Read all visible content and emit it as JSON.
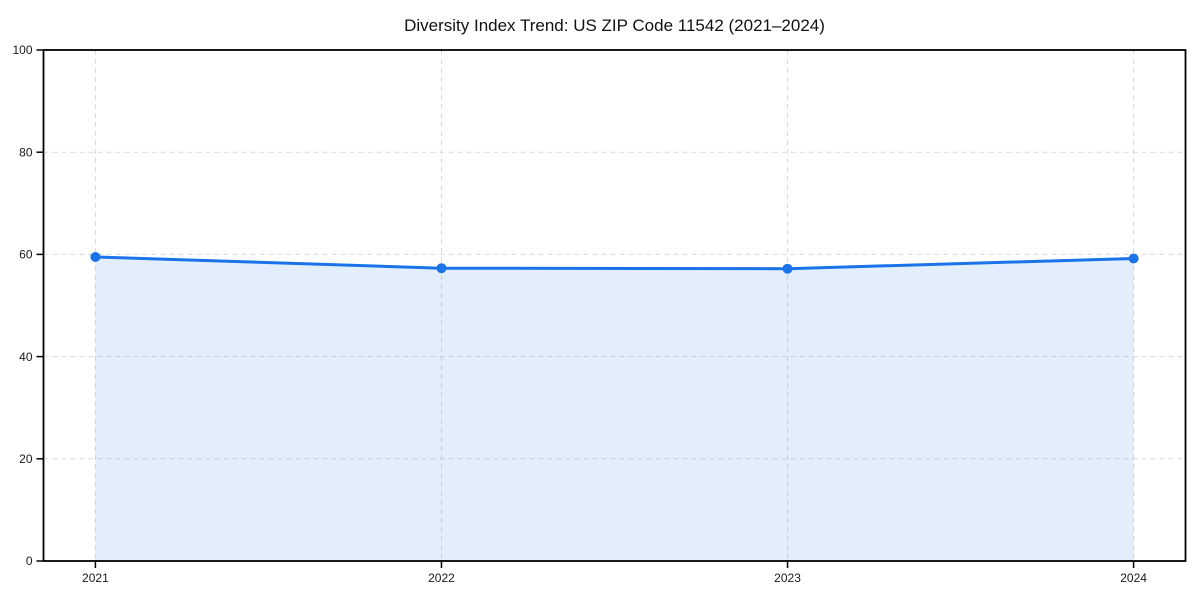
{
  "chart_data": {
    "type": "area",
    "title": "Diversity Index Trend: US ZIP Code 11542 (2021–2024)",
    "x": [
      2021,
      2022,
      2023,
      2024
    ],
    "series": [
      {
        "name": "Diversity Index",
        "values": [
          59.5,
          57.3,
          57.2,
          59.2
        ]
      }
    ],
    "xlabel": "",
    "ylabel": "",
    "ylim": [
      0,
      100
    ],
    "yticks": [
      0,
      20,
      40,
      60,
      80,
      100
    ],
    "ytick_labels": [
      "0",
      "20",
      "40",
      "60",
      "80",
      "100"
    ],
    "xticks": [
      2021,
      2022,
      2023,
      2024
    ],
    "xtick_labels": [
      "2021",
      "2022",
      "2023",
      "2024"
    ],
    "grid": "dashed",
    "legend_position": "none",
    "colors": {
      "line": "#1a73e8",
      "marker": "#1a73e8",
      "fill": "#1a73e8",
      "fill_opacity": 0.12,
      "grid": "#d9d9d9",
      "axis": "#000000",
      "text": "#1a1a1a"
    }
  }
}
